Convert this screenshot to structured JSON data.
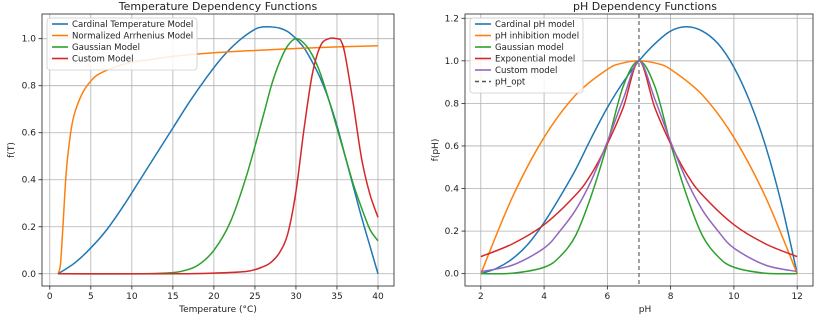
{
  "chart_data": [
    {
      "type": "line",
      "title": "Temperature Dependency Functions",
      "xlabel": "Temperature (°C)",
      "ylabel": "f(T)",
      "xlim": [
        -0.95,
        41.95
      ],
      "ylim": [
        -0.052,
        1.105
      ],
      "xticks": [
        0,
        5,
        10,
        15,
        20,
        25,
        30,
        35,
        40
      ],
      "yticks": [
        0.0,
        0.2,
        0.4,
        0.6,
        0.8,
        1.0
      ],
      "grid": true,
      "legend_position": "top-left",
      "series": [
        {
          "name": "Cardinal Temperature Model",
          "color": "#1f77b4",
          "x": [
            1,
            3,
            5,
            7,
            9,
            11,
            13,
            15,
            17,
            19,
            21,
            23,
            25,
            26,
            27,
            28,
            29,
            30,
            31,
            32,
            33,
            34,
            35,
            36,
            37,
            38,
            39,
            40
          ],
          "y": [
            0.0,
            0.045,
            0.11,
            0.19,
            0.29,
            0.4,
            0.51,
            0.62,
            0.73,
            0.83,
            0.92,
            0.99,
            1.04,
            1.05,
            1.05,
            1.045,
            1.03,
            1.0,
            0.96,
            0.9,
            0.83,
            0.74,
            0.63,
            0.5,
            0.37,
            0.24,
            0.12,
            0.0
          ]
        },
        {
          "name": "Normalized Arrhenius Model",
          "color": "#ff7f0e",
          "x": [
            1,
            1.3,
            1.6,
            2,
            2.5,
            3,
            4,
            5,
            6,
            8,
            10,
            12,
            15,
            20,
            25,
            30,
            35,
            40
          ],
          "y": [
            0.0,
            0.04,
            0.2,
            0.43,
            0.59,
            0.68,
            0.77,
            0.82,
            0.85,
            0.88,
            0.9,
            0.91,
            0.925,
            0.94,
            0.95,
            0.958,
            0.965,
            0.97
          ]
        },
        {
          "name": "Gaussian Model",
          "color": "#2ca02c",
          "x": [
            1,
            10,
            14,
            16,
            18,
            20,
            22,
            24,
            26,
            27,
            28,
            29,
            30,
            31,
            32,
            33,
            34,
            35,
            36,
            37,
            38,
            39,
            40
          ],
          "y": [
            0.0,
            0.0,
            0.003,
            0.01,
            0.035,
            0.1,
            0.22,
            0.42,
            0.67,
            0.8,
            0.9,
            0.97,
            1.0,
            0.98,
            0.93,
            0.85,
            0.74,
            0.62,
            0.5,
            0.38,
            0.28,
            0.19,
            0.14
          ]
        },
        {
          "name": "Custom Model",
          "color": "#d62728",
          "x": [
            1,
            15,
            20,
            24,
            26,
            27,
            28,
            29,
            30,
            31,
            32,
            33,
            34,
            35,
            35.5,
            36,
            37,
            38,
            39,
            40
          ],
          "y": [
            0.0,
            0.0,
            0.003,
            0.01,
            0.03,
            0.05,
            0.09,
            0.17,
            0.35,
            0.62,
            0.85,
            0.97,
            1.0,
            1.0,
            0.99,
            0.93,
            0.72,
            0.49,
            0.34,
            0.24
          ]
        }
      ]
    },
    {
      "type": "line",
      "title": "pH Dependency Functions",
      "xlabel": "pH",
      "ylabel": "f(pH)",
      "xlim": [
        1.5,
        12.5
      ],
      "ylim": [
        -0.058,
        1.22
      ],
      "xticks": [
        2,
        4,
        6,
        8,
        10,
        12
      ],
      "yticks": [
        0.0,
        0.2,
        0.4,
        0.6,
        0.8,
        1.0,
        1.2
      ],
      "grid": true,
      "legend_position": "top-left",
      "vline": {
        "name": "pH_opt",
        "x": 7,
        "color": "#555555"
      },
      "series": [
        {
          "name": "Cardinal pH model",
          "color": "#1f77b4",
          "x": [
            2,
            2.5,
            3,
            3.5,
            4,
            4.5,
            5,
            5.5,
            6,
            6.5,
            7,
            7.5,
            8,
            8.5,
            9,
            9.5,
            10,
            10.5,
            11,
            11.5,
            12
          ],
          "y": [
            0.0,
            0.025,
            0.07,
            0.14,
            0.24,
            0.36,
            0.49,
            0.64,
            0.78,
            0.9,
            1.0,
            1.08,
            1.14,
            1.16,
            1.14,
            1.08,
            0.97,
            0.81,
            0.6,
            0.33,
            0.0
          ]
        },
        {
          "name": "pH inhibition model",
          "color": "#ff7f0e",
          "x": [
            2,
            3,
            4,
            5,
            6,
            6.5,
            7,
            7.5,
            8,
            9,
            10,
            11,
            12
          ],
          "y": [
            0.0,
            0.36,
            0.64,
            0.84,
            0.96,
            0.99,
            1.0,
            0.99,
            0.96,
            0.84,
            0.64,
            0.36,
            0.0
          ]
        },
        {
          "name": "Gaussian model",
          "color": "#2ca02c",
          "x": [
            2,
            3,
            4,
            4.5,
            5,
            5.5,
            6,
            6.5,
            7,
            7.5,
            8,
            8.5,
            9,
            9.5,
            10,
            11,
            12
          ],
          "y": [
            0.0,
            0.002,
            0.03,
            0.08,
            0.18,
            0.37,
            0.61,
            0.88,
            1.0,
            0.88,
            0.61,
            0.37,
            0.18,
            0.08,
            0.03,
            0.002,
            0.0
          ]
        },
        {
          "name": "Exponential model",
          "color": "#d62728",
          "x": [
            2,
            3,
            4,
            5,
            5.5,
            6,
            6.5,
            7,
            7.5,
            8,
            8.5,
            9,
            10,
            11,
            12
          ],
          "y": [
            0.08,
            0.14,
            0.23,
            0.37,
            0.47,
            0.61,
            0.78,
            1.0,
            0.78,
            0.61,
            0.47,
            0.37,
            0.23,
            0.14,
            0.08
          ]
        },
        {
          "name": "Custom model",
          "color": "#9467bd",
          "x": [
            2,
            3,
            4,
            4.5,
            5,
            5.5,
            6,
            6.5,
            7,
            7.5,
            8,
            8.5,
            9,
            9.5,
            10,
            11,
            12
          ],
          "y": [
            0.01,
            0.04,
            0.12,
            0.2,
            0.3,
            0.44,
            0.62,
            0.82,
            1.0,
            0.82,
            0.62,
            0.44,
            0.3,
            0.2,
            0.12,
            0.04,
            0.01
          ]
        }
      ]
    }
  ]
}
